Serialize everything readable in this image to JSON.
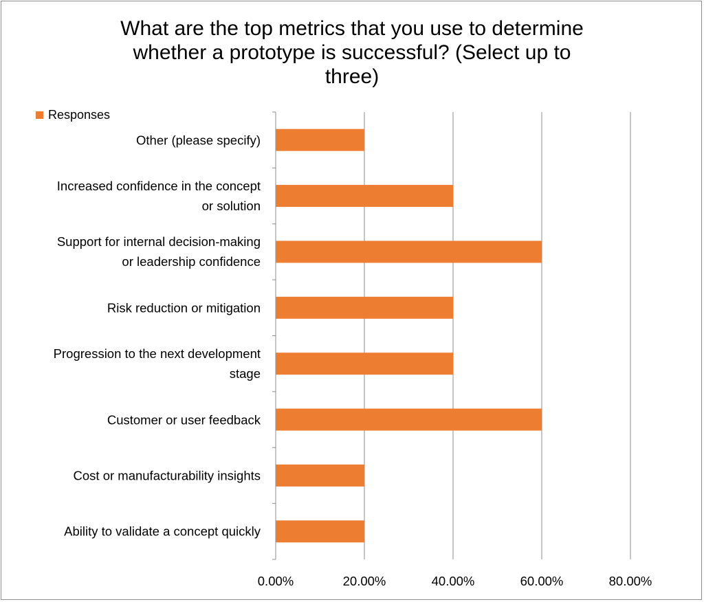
{
  "chart_data": {
    "type": "bar",
    "orientation": "horizontal",
    "title": "What are the top metrics that you use to determine whether a prototype is successful? (Select up to three)",
    "title_lines": [
      "What are the top metrics that you use to determine",
      "whether a prototype is successful? (Select up to",
      "three)"
    ],
    "categories": [
      "Other (please specify)",
      "Increased confidence in the concept or solution",
      "Support for internal decision-making or leadership confidence",
      "Risk reduction or mitigation",
      "Progression to the next development stage",
      "Customer or user feedback",
      "Cost or manufacturability insights",
      "Ability to validate a concept quickly"
    ],
    "category_lines": [
      [
        "Other (please specify)"
      ],
      [
        "Increased confidence in the concept",
        "or solution"
      ],
      [
        "Support for internal decision-making",
        "or leadership confidence"
      ],
      [
        "Risk reduction or mitigation"
      ],
      [
        "Progression to the next development",
        "stage"
      ],
      [
        "Customer or user feedback"
      ],
      [
        "Cost or manufacturability insights"
      ],
      [
        "Ability to validate a concept quickly"
      ]
    ],
    "series": [
      {
        "name": "Responses",
        "values": [
          20,
          40,
          60,
          40,
          40,
          60,
          20,
          20
        ],
        "color": "#ED7D31"
      }
    ],
    "xlim": [
      0,
      80
    ],
    "xticks": [
      0,
      20,
      40,
      60,
      80
    ],
    "xtick_labels": [
      "0.00%",
      "20.00%",
      "40.00%",
      "60.00%",
      "80.00%"
    ],
    "xlabel": "",
    "ylabel": "",
    "grid": "vertical",
    "legend": "top-left"
  }
}
